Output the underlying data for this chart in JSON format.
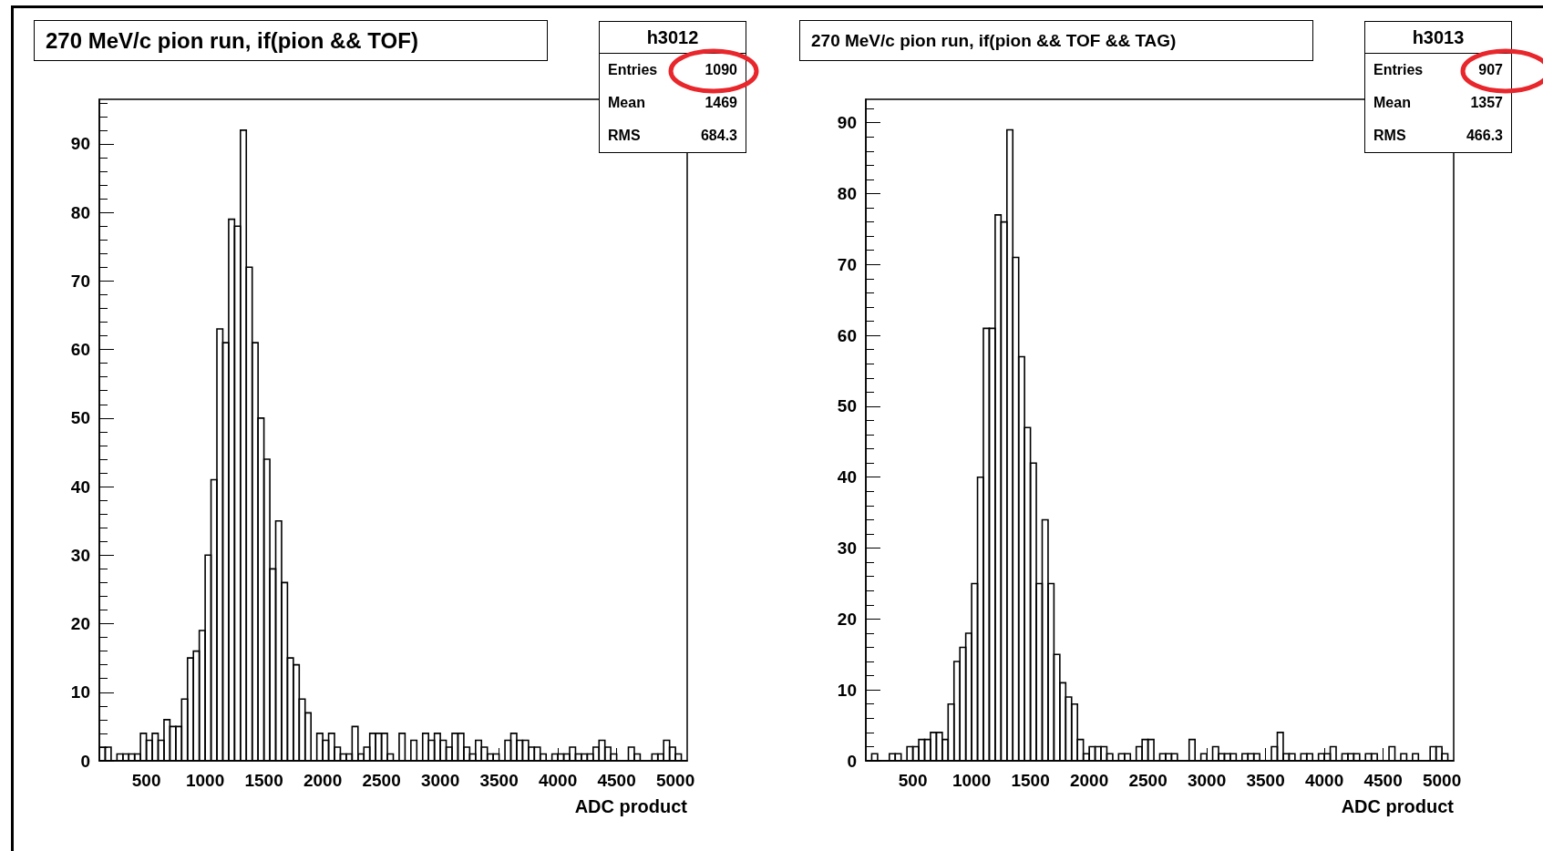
{
  "chart_data": [
    {
      "type": "histogram",
      "title": "270 MeV/c pion run, if(pion && TOF)",
      "xlabel": "ADC product",
      "color": "#000000",
      "annotations": [
        "h3012",
        "Entries",
        "1090",
        "Mean",
        "1469",
        "RMS",
        "684.3"
      ],
      "bins": [
        100,
        150,
        200,
        250,
        300,
        350,
        400,
        450,
        500,
        550,
        600,
        650,
        700,
        750,
        800,
        850,
        900,
        950,
        1000,
        1050,
        1100,
        1150,
        1200,
        1250,
        1300,
        1350,
        1400,
        1450,
        1500,
        1550,
        1600,
        1650,
        1700,
        1750,
        1800,
        1850,
        1900,
        1950,
        2000,
        2050,
        2100,
        2150,
        2200,
        2250,
        2300,
        2350,
        2400,
        2450,
        2500,
        2550,
        2600,
        2650,
        2700,
        2750,
        2800,
        2850,
        2900,
        2950,
        3000,
        3050,
        3100,
        3150,
        3200,
        3250,
        3300,
        3350,
        3400,
        3450,
        3500,
        3550,
        3600,
        3650,
        3700,
        3750,
        3800,
        3850,
        3900,
        3950,
        4000,
        4050,
        4100,
        4150,
        4200,
        4250,
        4300,
        4350,
        4400,
        4450,
        4500,
        4550,
        4600,
        4650,
        4700,
        4750,
        4800,
        4850,
        4900,
        4950,
        5000,
        5050,
        5100
      ],
      "values": [
        2,
        2,
        0,
        1,
        1,
        1,
        1,
        4,
        3,
        4,
        3,
        6,
        5,
        5,
        9,
        15,
        16,
        19,
        30,
        41,
        63,
        61,
        79,
        78,
        92,
        72,
        61,
        50,
        44,
        28,
        35,
        26,
        15,
        14,
        9,
        7,
        0,
        4,
        3,
        4,
        2,
        1,
        1,
        5,
        1,
        2,
        4,
        4,
        4,
        1,
        0,
        4,
        0,
        3,
        0,
        4,
        3,
        4,
        3,
        2,
        4,
        4,
        2,
        1,
        3,
        2,
        1,
        1,
        0,
        3,
        4,
        3,
        3,
        2,
        2,
        1,
        0,
        1,
        1,
        1,
        2,
        1,
        1,
        1,
        2,
        3,
        2,
        1,
        0,
        0,
        2,
        1,
        0,
        0,
        1,
        1,
        3,
        2,
        1,
        0
      ],
      "xlim": [
        100,
        5100
      ],
      "xticks": [
        500,
        1000,
        1500,
        2000,
        2500,
        3000,
        3500,
        4000,
        4500,
        5000
      ],
      "ylim": [
        0,
        96.5
      ],
      "yticks": [
        0,
        10,
        20,
        30,
        40,
        50,
        60,
        70,
        80,
        90
      ]
    },
    {
      "type": "histogram",
      "title": "270 MeV/c pion run, if(pion && TOF && TAG)",
      "xlabel": "ADC product",
      "color": "#000000",
      "annotations": [
        "h3013",
        "Entries",
        "907",
        "Mean",
        "1357",
        "RMS",
        "466.3"
      ],
      "bins": [
        100,
        150,
        200,
        250,
        300,
        350,
        400,
        450,
        500,
        550,
        600,
        650,
        700,
        750,
        800,
        850,
        900,
        950,
        1000,
        1050,
        1100,
        1150,
        1200,
        1250,
        1300,
        1350,
        1400,
        1450,
        1500,
        1550,
        1600,
        1650,
        1700,
        1750,
        1800,
        1850,
        1900,
        1950,
        2000,
        2050,
        2100,
        2150,
        2200,
        2250,
        2300,
        2350,
        2400,
        2450,
        2500,
        2550,
        2600,
        2650,
        2700,
        2750,
        2800,
        2850,
        2900,
        2950,
        3000,
        3050,
        3100,
        3150,
        3200,
        3250,
        3300,
        3350,
        3400,
        3450,
        3500,
        3550,
        3600,
        3650,
        3700,
        3750,
        3800,
        3850,
        3900,
        3950,
        4000,
        4050,
        4100,
        4150,
        4200,
        4250,
        4300,
        4350,
        4400,
        4450,
        4500,
        4550,
        4600,
        4650,
        4700,
        4750,
        4800,
        4850,
        4900,
        4950,
        5000,
        5050,
        5100
      ],
      "values": [
        0,
        1,
        0,
        0,
        1,
        1,
        0,
        2,
        2,
        3,
        3,
        4,
        4,
        3,
        8,
        14,
        16,
        18,
        25,
        40,
        61,
        61,
        77,
        76,
        89,
        71,
        57,
        47,
        42,
        25,
        34,
        25,
        15,
        11,
        9,
        8,
        3,
        1,
        2,
        2,
        2,
        1,
        0,
        1,
        1,
        0,
        2,
        3,
        3,
        0,
        1,
        1,
        1,
        0,
        0,
        3,
        0,
        1,
        0,
        2,
        1,
        1,
        1,
        0,
        1,
        1,
        1,
        0,
        0,
        2,
        4,
        1,
        1,
        0,
        1,
        1,
        0,
        1,
        1,
        2,
        0,
        1,
        1,
        1,
        0,
        1,
        1,
        0,
        0,
        2,
        0,
        1,
        0,
        1,
        0,
        0,
        2,
        2,
        1,
        0
      ],
      "xlim": [
        100,
        5100
      ],
      "xticks": [
        500,
        1000,
        1500,
        2000,
        2500,
        3000,
        3500,
        4000,
        4500,
        5000
      ],
      "ylim": [
        0,
        93.3
      ],
      "yticks": [
        0,
        10,
        20,
        30,
        40,
        50,
        60,
        70,
        80,
        90
      ]
    }
  ]
}
